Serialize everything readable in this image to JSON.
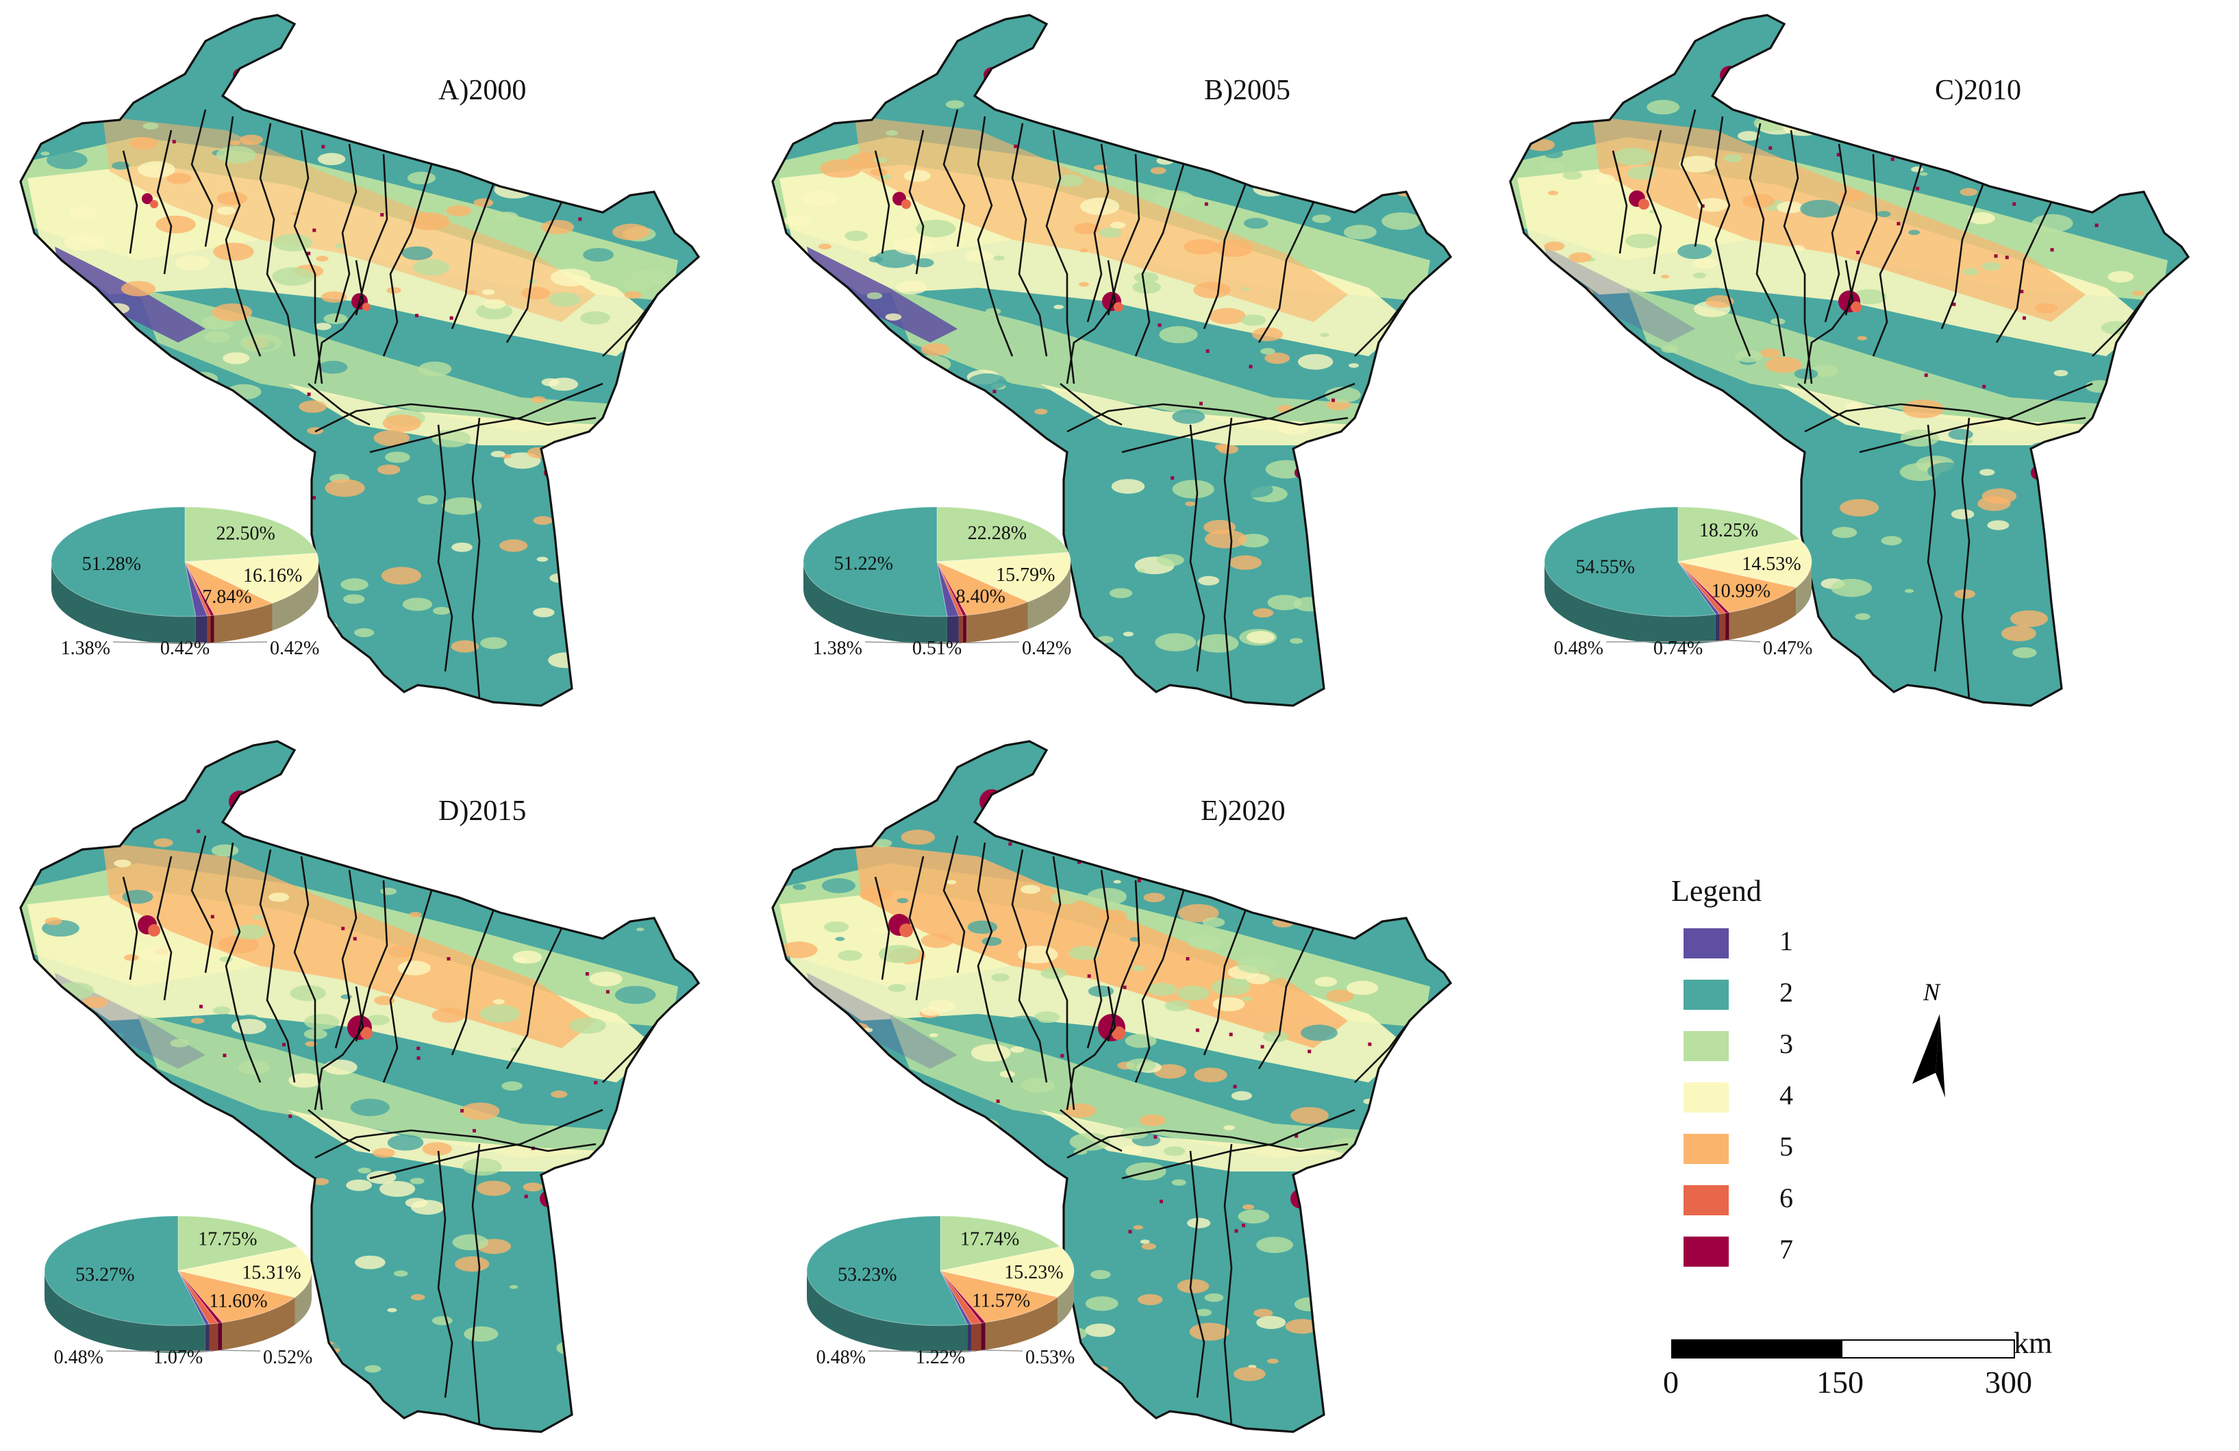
{
  "panels": [
    {
      "title": "A)2000",
      "pie": [
        {
          "cls": "2",
          "v": "51.28%"
        },
        {
          "cls": "3",
          "v": "22.50%"
        },
        {
          "cls": "4",
          "v": "16.16%"
        },
        {
          "cls": "5",
          "v": "7.84%"
        },
        {
          "cls": "7",
          "v": "0.42%"
        },
        {
          "cls": "6",
          "v": "0.42%"
        },
        {
          "cls": "1",
          "v": "1.38%"
        }
      ]
    },
    {
      "title": "B)2005",
      "pie": [
        {
          "cls": "2",
          "v": "51.22%"
        },
        {
          "cls": "3",
          "v": "22.28%"
        },
        {
          "cls": "4",
          "v": "15.79%"
        },
        {
          "cls": "5",
          "v": "8.40%"
        },
        {
          "cls": "7",
          "v": "0.42%"
        },
        {
          "cls": "6",
          "v": "0.51%"
        },
        {
          "cls": "1",
          "v": "1.38%"
        }
      ]
    },
    {
      "title": "C)2010",
      "pie": [
        {
          "cls": "2",
          "v": "54.55%"
        },
        {
          "cls": "3",
          "v": "18.25%"
        },
        {
          "cls": "4",
          "v": "14.53%"
        },
        {
          "cls": "5",
          "v": "10.99%"
        },
        {
          "cls": "7",
          "v": "0.47%"
        },
        {
          "cls": "6",
          "v": "0.74%"
        },
        {
          "cls": "1",
          "v": "0.48%"
        }
      ]
    },
    {
      "title": "D)2015",
      "pie": [
        {
          "cls": "2",
          "v": "53.27%"
        },
        {
          "cls": "3",
          "v": "17.75%"
        },
        {
          "cls": "4",
          "v": "15.31%"
        },
        {
          "cls": "5",
          "v": "11.60%"
        },
        {
          "cls": "7",
          "v": "0.52%"
        },
        {
          "cls": "6",
          "v": "1.07%"
        },
        {
          "cls": "1",
          "v": "0.48%"
        }
      ]
    },
    {
      "title": "E)2020",
      "pie": [
        {
          "cls": "2",
          "v": "53.23%"
        },
        {
          "cls": "3",
          "v": "17.74%"
        },
        {
          "cls": "4",
          "v": "15.23%"
        },
        {
          "cls": "5",
          "v": "11.57%"
        },
        {
          "cls": "7",
          "v": "0.53%"
        },
        {
          "cls": "6",
          "v": "1.22%"
        },
        {
          "cls": "1",
          "v": "0.48%"
        }
      ]
    }
  ],
  "legend": {
    "title": "Legend",
    "items": [
      {
        "label": "1",
        "color": "#5e4fa2"
      },
      {
        "label": "2",
        "color": "#4aa8a0"
      },
      {
        "label": "3",
        "color": "#b9e0a0"
      },
      {
        "label": "4",
        "color": "#fbf8bf"
      },
      {
        "label": "5",
        "color": "#fbb46c"
      },
      {
        "label": "6",
        "color": "#e8674a"
      },
      {
        "label": "7",
        "color": "#9e0142"
      }
    ]
  },
  "north_label": "N",
  "scale": {
    "unit": "km",
    "ticks": [
      "0",
      "150",
      "300"
    ]
  }
}
